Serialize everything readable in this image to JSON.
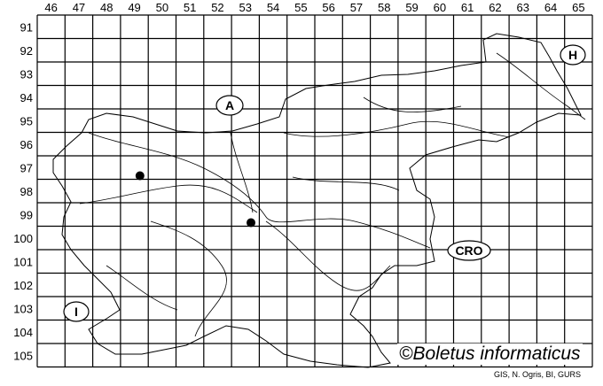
{
  "map": {
    "columns": [
      "46",
      "47",
      "48",
      "49",
      "50",
      "51",
      "52",
      "53",
      "54",
      "55",
      "56",
      "57",
      "58",
      "59",
      "60",
      "61",
      "62",
      "63",
      "64",
      "65"
    ],
    "rows": [
      "91",
      "92",
      "93",
      "94",
      "95",
      "96",
      "97",
      "98",
      "99",
      "100",
      "101",
      "102",
      "103",
      "104",
      "105"
    ],
    "country_labels": [
      {
        "id": "austria",
        "text": "A"
      },
      {
        "id": "hungary",
        "text": "H"
      },
      {
        "id": "croatia",
        "text": "CRO"
      },
      {
        "id": "italy",
        "text": "I"
      }
    ],
    "occurrences": [
      {
        "col": "49",
        "row": "97"
      },
      {
        "col": "53",
        "row": "99"
      }
    ],
    "colors": {
      "lines": "#000000",
      "background": "#ffffff",
      "dots": "#000000"
    }
  },
  "credit": "©Boletus informaticus",
  "source": "GIS, N. Ogris, BI, GURS"
}
